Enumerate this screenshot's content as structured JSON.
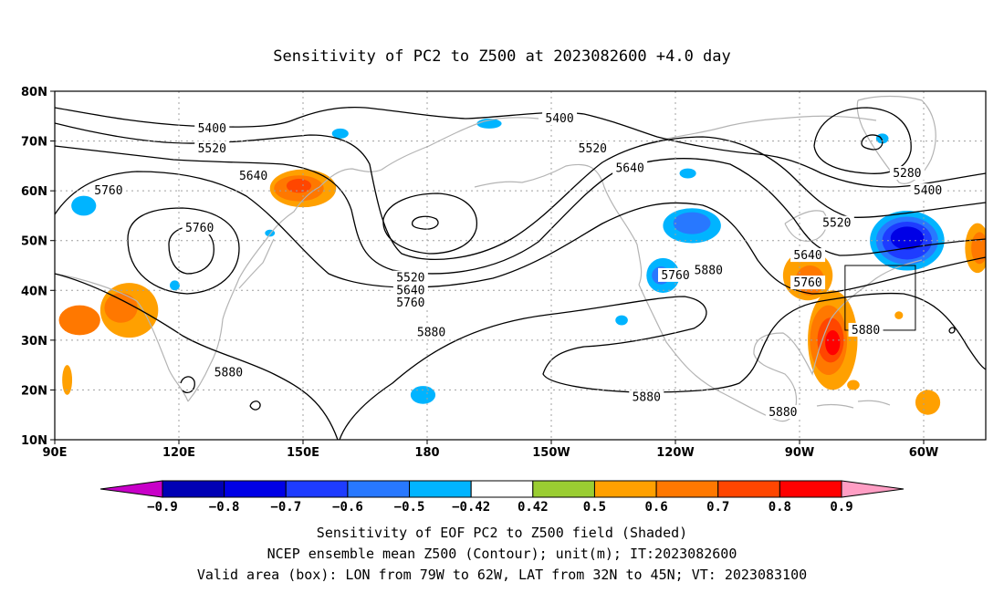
{
  "title": "Sensitivity of PC2 to Z500 at 2023082600 +4.0 day",
  "map": {
    "lat_ticks": [
      "80N",
      "70N",
      "60N",
      "50N",
      "40N",
      "30N",
      "20N",
      "10N"
    ],
    "lon_ticks": [
      "90E",
      "120E",
      "150E",
      "180",
      "150W",
      "120W",
      "90W",
      "60W"
    ],
    "lon_range": [
      90,
      315
    ],
    "lat_range": [
      10,
      80
    ],
    "gridlines": "dotted",
    "coastline_color": "#b4b4b4",
    "contour_labels": [
      {
        "text": "5400",
        "lon": 128,
        "lat": 72.5
      },
      {
        "text": "5520",
        "lon": 128,
        "lat": 68.5
      },
      {
        "text": "5640",
        "lon": 138,
        "lat": 63
      },
      {
        "text": "5760",
        "lon": 103,
        "lat": 60
      },
      {
        "text": "5760",
        "lon": 125,
        "lat": 52.5
      },
      {
        "text": "5400",
        "lon": 212,
        "lat": 74.5
      },
      {
        "text": "5520",
        "lon": 220,
        "lat": 68.5
      },
      {
        "text": "5640",
        "lon": 229,
        "lat": 64.5
      },
      {
        "text": "5520",
        "lon": 176,
        "lat": 42.5
      },
      {
        "text": "5640",
        "lon": 176,
        "lat": 40
      },
      {
        "text": "5760",
        "lon": 176,
        "lat": 37.5
      },
      {
        "text": "5880",
        "lon": 181,
        "lat": 31.5
      },
      {
        "text": "5880",
        "lon": 132,
        "lat": 23.5
      },
      {
        "text": "5760",
        "lon": 240,
        "lat": 43
      },
      {
        "text": "5880",
        "lon": 248,
        "lat": 44
      },
      {
        "text": "5880",
        "lon": 233,
        "lat": 18.5
      },
      {
        "text": "5880",
        "lon": 266,
        "lat": 15.5
      },
      {
        "text": "5280",
        "lon": 296,
        "lat": 63.5
      },
      {
        "text": "5400",
        "lon": 301,
        "lat": 60
      },
      {
        "text": "5520",
        "lon": 279,
        "lat": 53.5
      },
      {
        "text": "5640",
        "lon": 272,
        "lat": 47
      },
      {
        "text": "5760",
        "lon": 272,
        "lat": 41.5
      },
      {
        "text": "5880",
        "lon": 286,
        "lat": 32
      }
    ],
    "valid_box": {
      "lon_w": 281,
      "lon_e": 298,
      "lat_s": 32,
      "lat_n": 45
    }
  },
  "shading": [
    {
      "lon": 108,
      "lat": 36,
      "rx": 7,
      "ry": 5.5,
      "value": 0.5
    },
    {
      "lon": 106,
      "lat": 36.5,
      "rx": 4,
      "ry": 3,
      "value": 0.6
    },
    {
      "lon": 96,
      "lat": 34,
      "rx": 5,
      "ry": 3,
      "value": 0.6
    },
    {
      "lon": 150,
      "lat": 60.5,
      "rx": 8,
      "ry": 3.8,
      "value": 0.5
    },
    {
      "lon": 149,
      "lat": 60.5,
      "rx": 6,
      "ry": 2.6,
      "value": 0.6
    },
    {
      "lon": 149,
      "lat": 61,
      "rx": 3,
      "ry": 1.4,
      "value": 0.7
    },
    {
      "lon": 272,
      "lat": 43,
      "rx": 6,
      "ry": 5,
      "value": 0.5
    },
    {
      "lon": 272.5,
      "lat": 42,
      "rx": 3.5,
      "ry": 3,
      "value": 0.6
    },
    {
      "lon": 278,
      "lat": 30,
      "rx": 6,
      "ry": 10,
      "value": 0.5
    },
    {
      "lon": 277,
      "lat": 30,
      "rx": 4.5,
      "ry": 7,
      "value": 0.6
    },
    {
      "lon": 277.5,
      "lat": 30,
      "rx": 3.2,
      "ry": 4.5,
      "value": 0.7
    },
    {
      "lon": 278,
      "lat": 29.5,
      "rx": 1.8,
      "ry": 2.5,
      "value": 0.8
    },
    {
      "lon": 313,
      "lat": 48.5,
      "rx": 3,
      "ry": 5,
      "value": 0.5
    },
    {
      "lon": 313.5,
      "lat": 48.5,
      "rx": 2,
      "ry": 3.2,
      "value": 0.6
    },
    {
      "lon": 296,
      "lat": 50,
      "rx": 9,
      "ry": 6,
      "value": -0.5
    },
    {
      "lon": 296,
      "lat": 50,
      "rx": 7.5,
      "ry": 4.8,
      "value": -0.6
    },
    {
      "lon": 296,
      "lat": 50,
      "rx": 6,
      "ry": 3.8,
      "value": -0.7
    },
    {
      "lon": 296,
      "lat": 50.5,
      "rx": 4,
      "ry": 2.3,
      "value": -0.8
    },
    {
      "lon": 244,
      "lat": 53,
      "rx": 7,
      "ry": 3.5,
      "value": -0.5
    },
    {
      "lon": 244,
      "lat": 53.5,
      "rx": 4.5,
      "ry": 2.2,
      "value": -0.6
    },
    {
      "lon": 237,
      "lat": 43,
      "rx": 4,
      "ry": 3.5,
      "value": -0.5
    },
    {
      "lon": 236.5,
      "lat": 43,
      "rx": 2.2,
      "ry": 1.8,
      "value": -0.6
    },
    {
      "lon": 97,
      "lat": 57,
      "rx": 3,
      "ry": 2,
      "value": -0.5
    },
    {
      "lon": 159,
      "lat": 71.5,
      "rx": 2,
      "ry": 1,
      "value": -0.5
    },
    {
      "lon": 195,
      "lat": 73.5,
      "rx": 3,
      "ry": 1,
      "value": -0.5
    },
    {
      "lon": 243,
      "lat": 63.5,
      "rx": 2,
      "ry": 1,
      "value": -0.5
    },
    {
      "lon": 290,
      "lat": 70.5,
      "rx": 1.5,
      "ry": 1,
      "value": -0.5
    },
    {
      "lon": 119,
      "lat": 41,
      "rx": 1.2,
      "ry": 1,
      "value": -0.5
    },
    {
      "lon": 179,
      "lat": 19,
      "rx": 3,
      "ry": 1.8,
      "value": -0.5
    },
    {
      "lon": 227,
      "lat": 34,
      "rx": 1.5,
      "ry": 1,
      "value": -0.5
    },
    {
      "lon": 142,
      "lat": 51.5,
      "rx": 1.2,
      "ry": 0.7,
      "value": -0.5
    },
    {
      "lon": 93,
      "lat": 22,
      "rx": 1.2,
      "ry": 3,
      "value": 0.5
    },
    {
      "lon": 301,
      "lat": 17.5,
      "rx": 3,
      "ry": 2.5,
      "value": 0.5
    },
    {
      "lon": 283,
      "lat": 21,
      "rx": 1.5,
      "ry": 1,
      "value": 0.5
    },
    {
      "lon": 294,
      "lat": 35,
      "rx": 1,
      "ry": 0.8,
      "value": 0.5
    }
  ],
  "colorbar": {
    "labels": [
      "-0.9",
      "-0.8",
      "-0.7",
      "-0.6",
      "-0.5",
      "-0.42",
      "0.42",
      "0.5",
      "0.6",
      "0.7",
      "0.8",
      "0.9"
    ],
    "colors": [
      "#c800c8",
      "#0000b4",
      "#0000e6",
      "#1e3cff",
      "#2878ff",
      "#00b4ff",
      "#ffffff",
      "#9acd32",
      "#ffa000",
      "#ff7800",
      "#ff4600",
      "#ff0000",
      "#ff9ec4"
    ]
  },
  "captions": [
    "Sensitivity of EOF PC2 to Z500 field (Shaded)",
    "NCEP ensemble mean Z500 (Contour); unit(m); IT:2023082600",
    "Valid area (box): LON from 79W to 62W, LAT from 32N to 45N; VT: 2023083100"
  ]
}
